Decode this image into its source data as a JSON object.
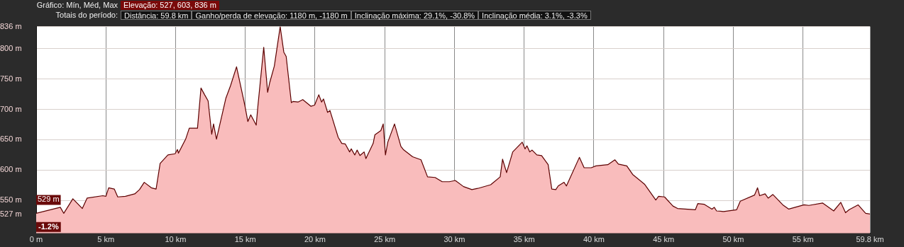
{
  "chart_data": {
    "type": "area",
    "annotations": [
      "Gráfico: Mín, Méd, Max",
      "Elevação: 527, 603, 836 m",
      "Totais do período:",
      "Distância: 59.8 km",
      "Ganho/perda de elevação: 1180 m, -1180 m",
      "Inclinação máxima: 29.1%, -30.8%",
      "Inclinação média: 3.1%, -3.3%",
      {
        "text": "529 m",
        "x": 0,
        "y": 529
      },
      "-1.2%"
    ],
    "series": [
      {
        "color": "#f9bcbc",
        "x": [
          0,
          1.73,
          1.98,
          2.63,
          3.31,
          3.65,
          4.78,
          5.0,
          5.2,
          5.6,
          5.85,
          6.4,
          7.07,
          7.41,
          7.75,
          8.26,
          8.6,
          8.89,
          9.45,
          9.96,
          10.13,
          10.2,
          10.72,
          10.98,
          11.57,
          11.82,
          12.08,
          12.33,
          12.59,
          12.72,
          12.93,
          13.6,
          13.94,
          14.37,
          14.96,
          15.18,
          15.39,
          15.78,
          15.9,
          16.32,
          16.6,
          16.74,
          17.08,
          17.5,
          17.76,
          17.93,
          18.3,
          18.43,
          18.78,
          19.12,
          19.71,
          19.97,
          20.27,
          20.47,
          20.61,
          20.9,
          21.07,
          21.66,
          21.92,
          22.17,
          22.48,
          22.6,
          22.85,
          23.02,
          23.22,
          23.52,
          23.65,
          24.17,
          24.29,
          24.72,
          24.89,
          25.05,
          25.22,
          25.7,
          26.16,
          26.33,
          27.0,
          27.6,
          28.07,
          28.61,
          29.12,
          29.63,
          30.06,
          30.65,
          31.25,
          31.67,
          32.6,
          33.28,
          33.45,
          33.74,
          34.18,
          34.86,
          35.06,
          35.2,
          35.4,
          35.57,
          35.91,
          36.25,
          36.72,
          36.98,
          37.27,
          37.44,
          37.86,
          38.03,
          38.96,
          39.3,
          39.81,
          40.15,
          41.0,
          41.51,
          41.76,
          42.36,
          42.78,
          43.63,
          44.44,
          44.64,
          45.07,
          45.67,
          46.0,
          47.28,
          47.45,
          47.9,
          48.47,
          48.63,
          48.8,
          49.31,
          50.24,
          50.5,
          51.52,
          51.74,
          51.89,
          52.28,
          52.5,
          52.84,
          53.55,
          53.98,
          55.08,
          55.42,
          56.4,
          57.2,
          57.71,
          58.05,
          58.31,
          58.95,
          59.49,
          59.8
        ],
        "values": [
          529,
          539,
          529,
          553,
          537,
          554,
          558,
          557,
          571,
          569,
          556,
          557,
          561,
          568,
          580,
          571,
          569,
          611,
          625,
          627,
          634,
          628,
          651,
          669,
          669,
          735,
          724,
          714,
          659,
          676,
          651,
          718,
          739,
          770,
          707,
          680,
          691,
          674,
          705,
          802,
          728,
          743,
          771,
          836,
          794,
          787,
          711,
          713,
          712,
          716,
          705,
          707,
          724,
          712,
          717,
          695,
          698,
          654,
          644,
          643,
          630,
          635,
          625,
          633,
          624,
          630,
          619,
          644,
          658,
          665,
          676,
          625,
          646,
          676,
          639,
          634,
          622,
          617,
          589,
          588,
          581,
          581,
          583,
          573,
          568,
          570,
          576,
          589,
          618,
          596,
          630,
          646,
          635,
          640,
          630,
          633,
          625,
          624,
          609,
          569,
          568,
          574,
          580,
          574,
          621,
          604,
          604,
          607,
          609,
          617,
          610,
          607,
          593,
          577,
          551,
          557,
          556,
          541,
          537,
          535,
          545,
          544,
          536,
          539,
          533,
          532,
          535,
          549,
          559,
          571,
          558,
          561,
          554,
          560,
          543,
          536,
          543,
          542,
          546,
          533,
          547,
          530,
          535,
          543,
          529,
          528
        ]
      }
    ],
    "xlim": [
      0,
      59.8
    ],
    "xticks": [
      {
        "value": 0,
        "label": "0 m"
      },
      {
        "value": 5,
        "label": "5 km"
      },
      {
        "value": 10,
        "label": "10 km"
      },
      {
        "value": 15,
        "label": "15 km"
      },
      {
        "value": 20,
        "label": "20 km"
      },
      {
        "value": 25,
        "label": "25 km"
      },
      {
        "value": 30,
        "label": "30 km"
      },
      {
        "value": 35,
        "label": "35 km"
      },
      {
        "value": 40,
        "label": "40 km"
      },
      {
        "value": 45,
        "label": "45 km"
      },
      {
        "value": 50,
        "label": "50 km"
      },
      {
        "value": 55,
        "label": "55 km"
      },
      {
        "value": 59.8,
        "label": "59.8 km"
      }
    ],
    "ylim": [
      496,
      836
    ],
    "yticks": [
      {
        "value": 527,
        "label": "527 m"
      },
      {
        "value": 550,
        "label": "550 m"
      },
      {
        "value": 600,
        "label": "600 m"
      },
      {
        "value": 650,
        "label": "650 m"
      },
      {
        "value": 700,
        "label": "700 m"
      },
      {
        "value": 750,
        "label": "750 m"
      },
      {
        "value": 800,
        "label": "800 m"
      },
      {
        "value": 836,
        "label": "836 m"
      }
    ],
    "grid": true,
    "legend": false
  }
}
